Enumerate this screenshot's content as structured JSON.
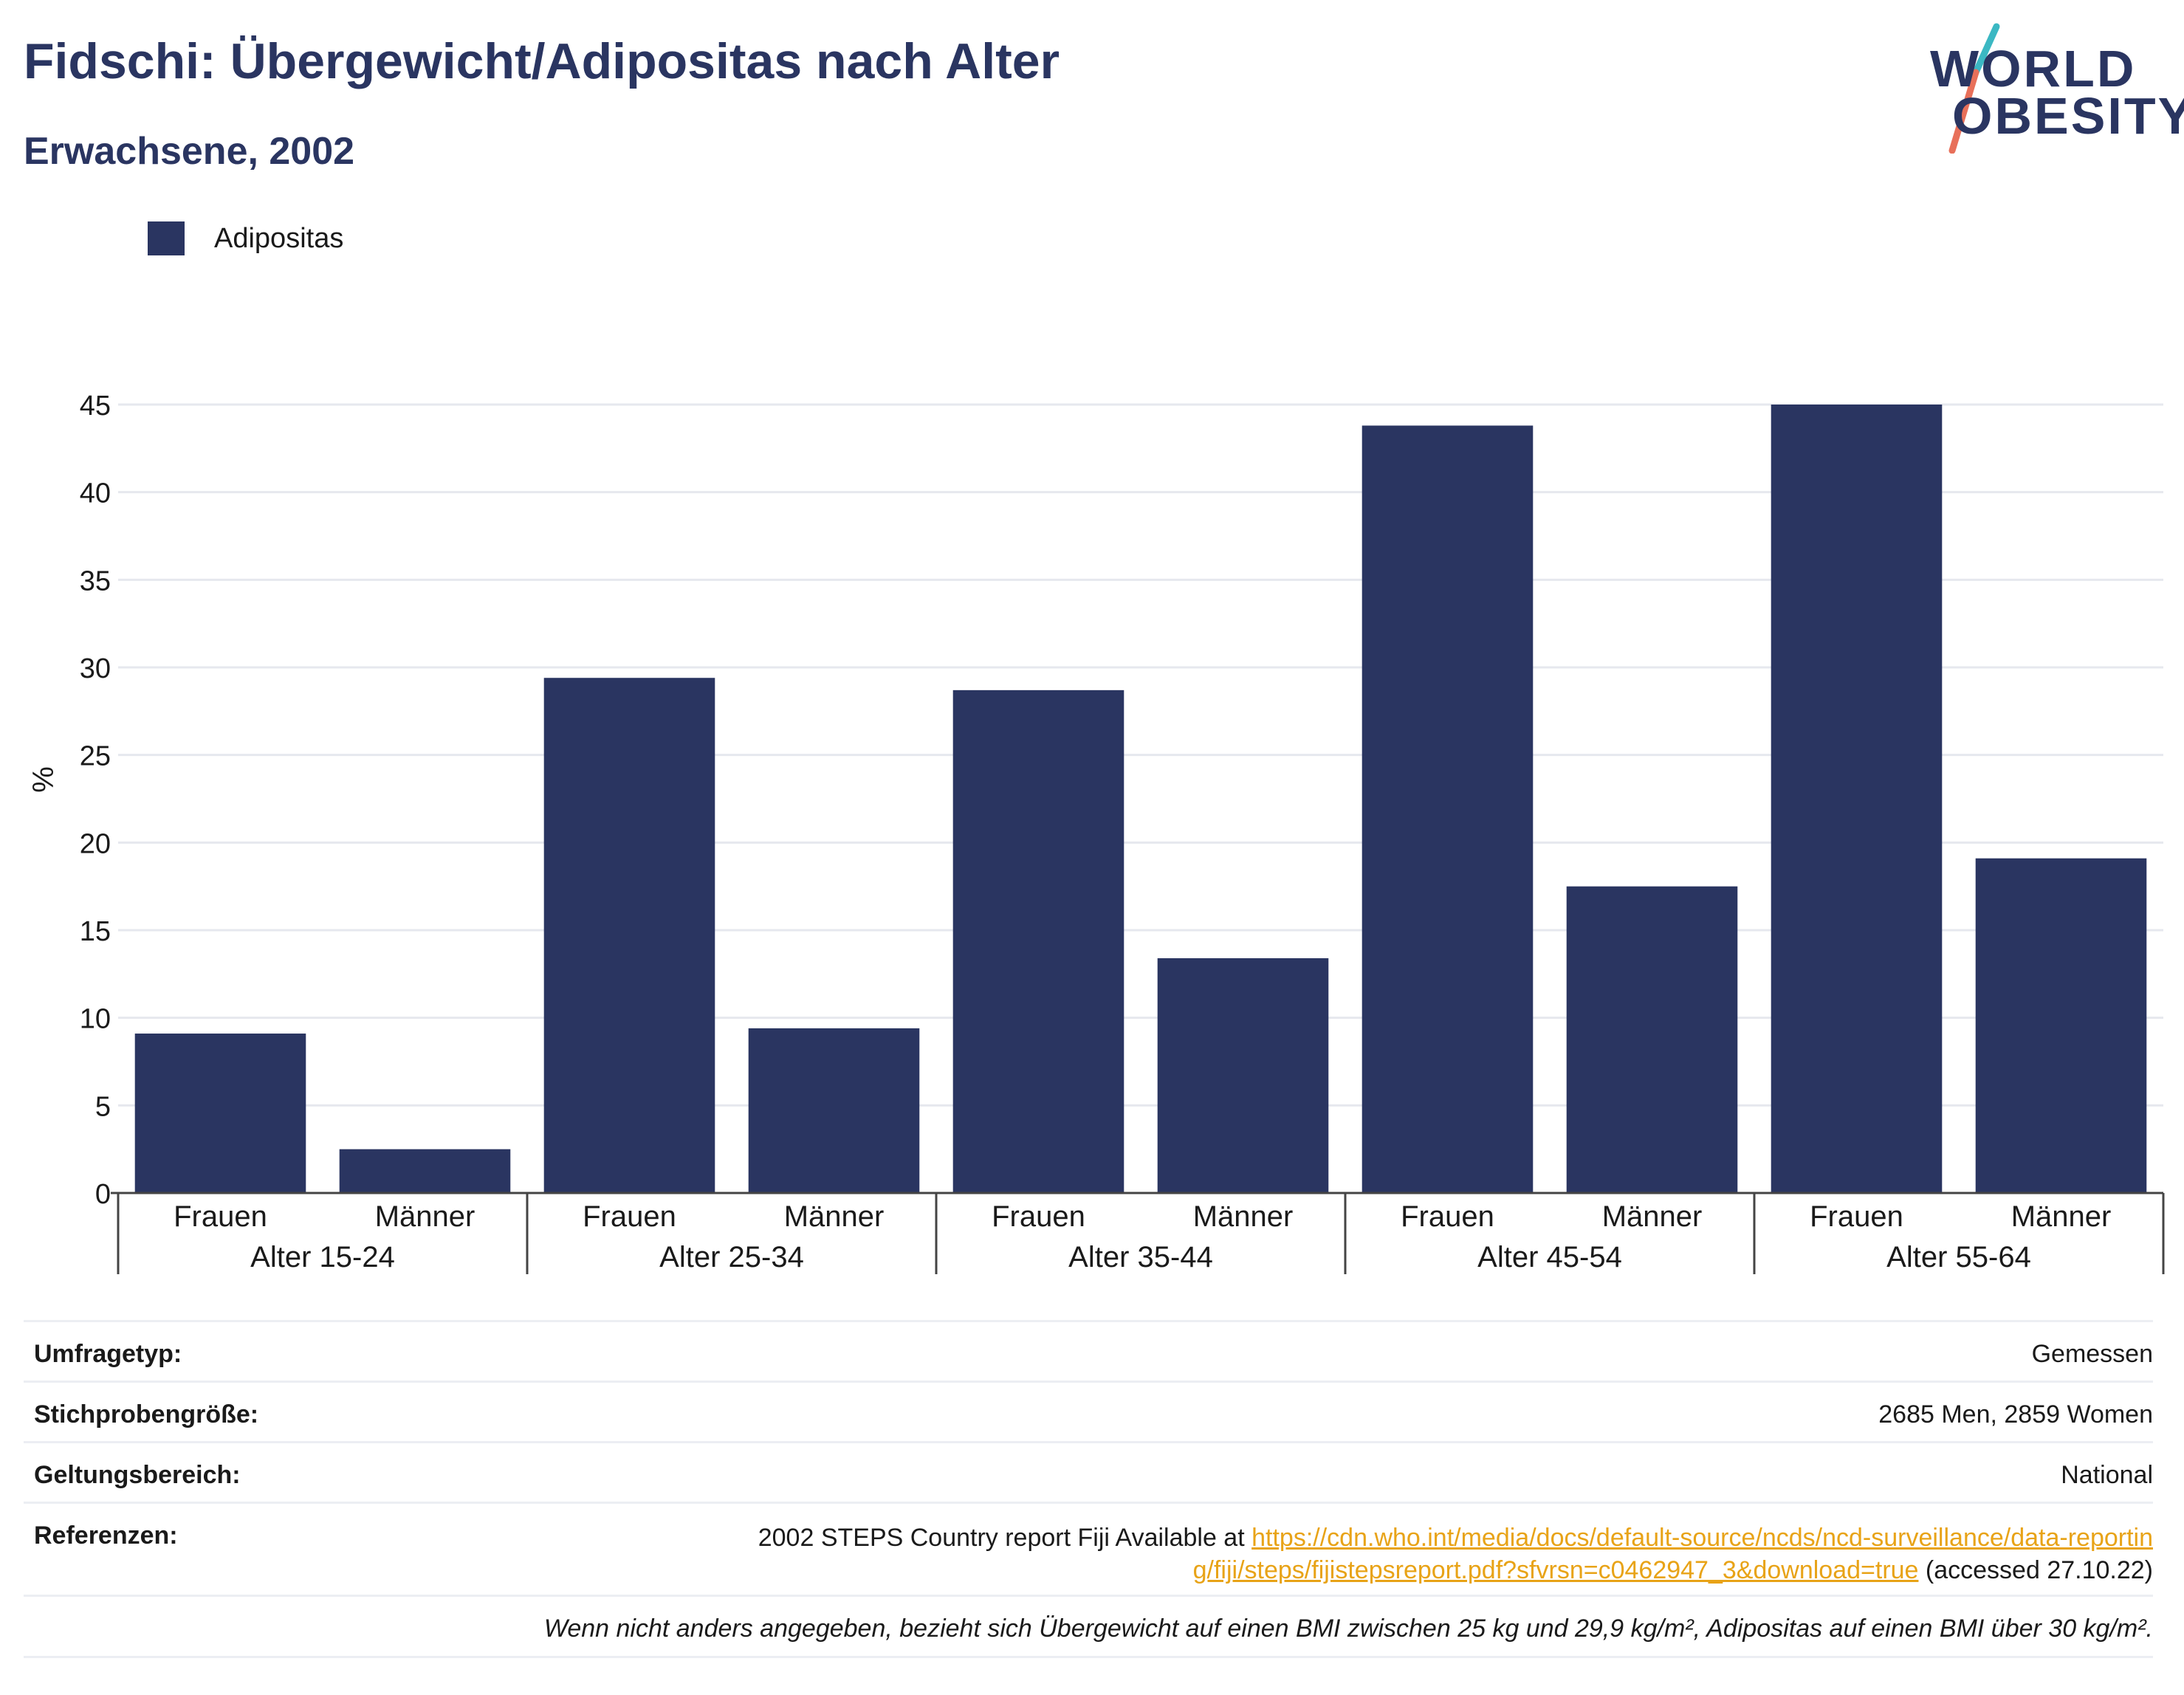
{
  "header": {
    "title": "Fidschi: Übergewicht/Adipositas nach Alter",
    "subtitle": "Erwachsene, 2002"
  },
  "logo": {
    "line1": "WORLD",
    "line2": "OBESITY",
    "colors": {
      "text": "#2a3561",
      "slash_top": "#3bb8c3",
      "slash_bottom": "#e8705a"
    }
  },
  "legend": {
    "label": "Adipositas",
    "color": "#2a3561"
  },
  "chart_data": {
    "type": "bar",
    "ylabel": "%",
    "ylim": [
      0,
      45
    ],
    "yticks": [
      0,
      5,
      10,
      15,
      20,
      25,
      30,
      35,
      40,
      45
    ],
    "grid": true,
    "groups": [
      "Alter 15-24",
      "Alter 25-34",
      "Alter 35-44",
      "Alter 45-54",
      "Alter 55-64"
    ],
    "subcategories": [
      "Frauen",
      "Männer"
    ],
    "series": [
      {
        "name": "Adipositas",
        "color": "#2a3561",
        "values": [
          9.1,
          2.5,
          29.4,
          9.4,
          28.7,
          13.4,
          43.8,
          17.5,
          45.0,
          19.1
        ]
      }
    ]
  },
  "info": {
    "survey_type": {
      "label": "Umfragetyp:",
      "value": "Gemessen"
    },
    "sample_size": {
      "label": "Stichprobengröße:",
      "value": "2685 Men, 2859 Women"
    },
    "scope": {
      "label": "Geltungsbereich:",
      "value": "National"
    },
    "references": {
      "label": "Referenzen:",
      "text_before": "2002 STEPS Country report Fiji Available at ",
      "link": "https://cdn.who.int/media/docs/default-source/ncds/ncd-surveillance/data-reporting/fiji/steps/fijistepsreport.pdf?sfvrsn=c0462947_3&download=true",
      "text_after": " (accessed 27.10.22)"
    },
    "note": "Wenn nicht anders angegeben, bezieht sich Übergewicht auf einen BMI zwischen 25 kg und 29,9 kg/m², Adipositas auf einen BMI über 30 kg/m²."
  }
}
